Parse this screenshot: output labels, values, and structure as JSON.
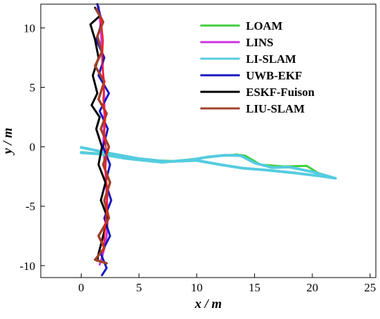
{
  "chart_data": {
    "type": "line",
    "xlabel": "x / m",
    "ylabel": "y / m",
    "xlim": [
      -3.5,
      25.5
    ],
    "ylim": [
      -11,
      12
    ],
    "xticks": [
      "0",
      "5",
      "10",
      "15",
      "20",
      "25"
    ],
    "yticks": [
      "-10",
      "-5",
      "0",
      "5",
      "10"
    ],
    "xtick_values": [
      0,
      5,
      10,
      15,
      20,
      25
    ],
    "ytick_values": [
      -10,
      -5,
      0,
      5,
      10
    ],
    "legend_position": "top-right",
    "grid": false,
    "series": [
      {
        "name": "LOAM",
        "color": "#3ecf3e",
        "x": [
          0.0,
          2.0,
          5.0,
          8.0,
          10.5,
          12.0,
          13.5,
          14.2,
          15.5,
          17.5,
          19.5,
          20.5,
          22.0
        ],
        "y": [
          -0.45,
          -0.6,
          -1.1,
          -1.2,
          -0.95,
          -0.75,
          -0.65,
          -0.75,
          -1.5,
          -1.65,
          -1.6,
          -2.2,
          -2.65
        ]
      },
      {
        "name": "LINS",
        "color": "#cc33dd",
        "x": [
          1.5,
          1.7,
          1.8,
          1.9,
          2.0,
          2.0,
          1.9,
          2.1,
          2.2,
          2.3,
          2.2,
          2.0,
          1.8,
          1.6
        ],
        "y": [
          11.8,
          10.0,
          8.0,
          6.0,
          4.0,
          2.0,
          0.0,
          -2.0,
          -4.0,
          -6.0,
          -7.5,
          -8.5,
          -9.3,
          -9.9
        ]
      },
      {
        "name": "LI-SLAM",
        "color": "#55cce0",
        "x": [
          0.0,
          1.5,
          4.0,
          7.0,
          9.5,
          11.0,
          12.5,
          13.8,
          15.0,
          16.5,
          18.0,
          20.0,
          22.0,
          21.0,
          18.5,
          16.0,
          14.0,
          12.0,
          10.0,
          7.5,
          5.0,
          2.5,
          0.0
        ],
        "y": [
          -0.5,
          -0.6,
          -1.0,
          -1.3,
          -1.1,
          -0.85,
          -0.7,
          -0.75,
          -1.35,
          -1.75,
          -1.7,
          -2.1,
          -2.65,
          -2.5,
          -2.2,
          -1.95,
          -1.8,
          -1.5,
          -1.15,
          -1.25,
          -1.0,
          -0.55,
          -0.05
        ]
      },
      {
        "name": "UWB-EKF",
        "color": "#1818c0",
        "x": [
          1.4,
          1.8,
          1.3,
          2.0,
          1.5,
          2.4,
          1.6,
          2.3,
          1.9,
          2.5,
          2.1,
          2.6,
          2.0,
          2.5,
          1.7,
          2.2,
          1.8
        ],
        "y": [
          12.0,
          10.5,
          9.0,
          7.5,
          6.0,
          4.5,
          3.0,
          1.5,
          0.0,
          -1.5,
          -3.0,
          -4.5,
          -6.0,
          -7.5,
          -9.0,
          -10.2,
          -10.8
        ]
      },
      {
        "name": "ESKF-Fuison",
        "color": "#000000",
        "x": [
          1.2,
          1.6,
          0.8,
          1.2,
          1.5,
          1.0,
          1.4,
          0.9,
          1.6,
          1.3,
          1.8,
          1.5,
          2.1,
          1.7,
          2.3,
          1.9,
          1.5,
          1.4
        ],
        "y": [
          11.7,
          11.0,
          10.3,
          9.0,
          7.5,
          6.0,
          4.5,
          3.5,
          2.5,
          1.5,
          0.0,
          -1.5,
          -3.0,
          -4.5,
          -6.0,
          -7.5,
          -9.0,
          -9.6
        ]
      },
      {
        "name": "LIU-SLAM",
        "color": "#a0422a",
        "x": [
          1.3,
          1.9,
          1.4,
          1.8,
          1.2,
          2.0,
          1.5,
          2.2,
          1.7,
          2.4,
          1.9,
          2.5,
          2.0,
          2.4,
          1.5,
          2.0,
          1.2,
          2.2
        ],
        "y": [
          11.6,
          10.5,
          9.3,
          8.0,
          6.8,
          5.5,
          4.0,
          2.8,
          1.5,
          0.0,
          -1.5,
          -3.0,
          -4.5,
          -6.0,
          -7.5,
          -8.5,
          -9.5,
          -9.8
        ]
      },
      {
        "color": "#ff1a1a",
        "x": [
          1.7,
          1.9,
          1.8,
          2.0,
          1.9,
          2.1,
          2.0,
          2.2,
          2.1,
          2.3,
          2.1,
          1.9
        ],
        "y": [
          10.8,
          9.0,
          7.0,
          5.5,
          4.0,
          2.5,
          1.0,
          -0.5,
          -2.0,
          -4.0,
          -6.5,
          -8.8
        ]
      }
    ]
  }
}
